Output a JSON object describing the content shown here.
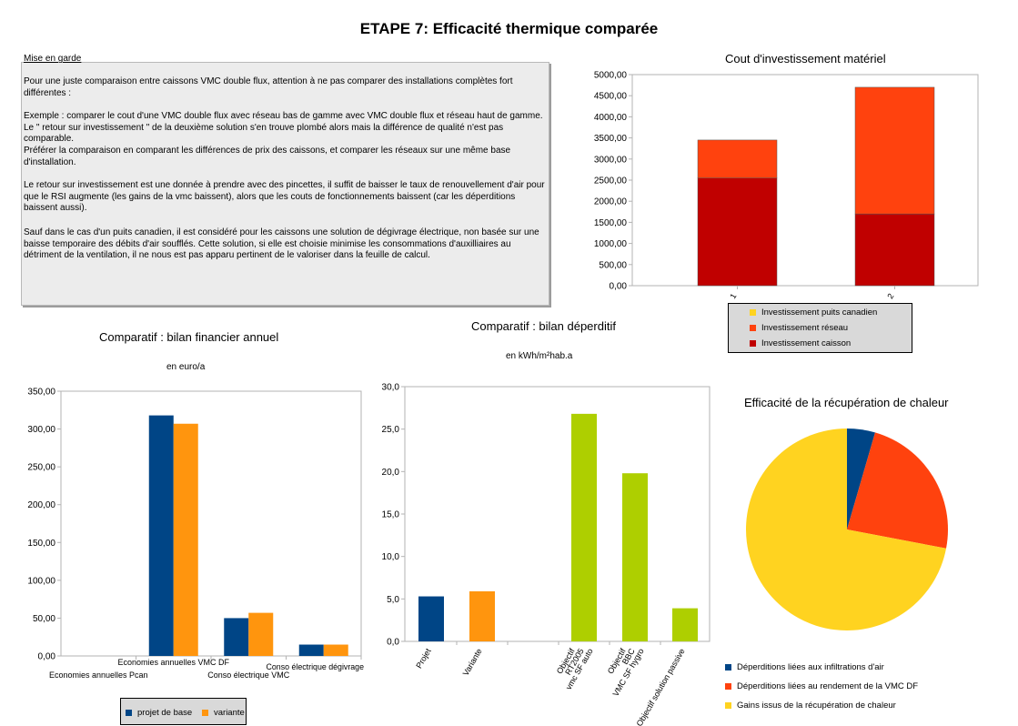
{
  "page": {
    "title": "ETAPE 7: Efficacité thermique comparée"
  },
  "warning": {
    "heading": "Mise en garde",
    "paragraphs": [
      "Pour une juste comparaison entre caissons VMC double flux, attention à ne pas comparer des installations complètes fort différentes :",
      "Exemple : comparer le cout d'une VMC double flux avec réseau bas de gamme avec VMC double flux et réseau haut de gamme. Le \" retour sur investissement \"  de la deuxième solution s'en trouve plombé alors  mais la différence de qualité n'est pas comparable.",
      "Préférer la comparaison en comparant les différences de prix des caissons, et comparer les réseaux sur une même base d'installation.",
      "Le retour sur investissement est une donnée à prendre avec des pincettes, il suffit de baisser le taux de renouvellement d'air pour que le RSI augmente (les gains de la vmc baissent), alors que les couts de fonctionnements baissent (car les déperditions baissent aussi).",
      "Sauf dans le cas d'un puits canadien, il est considéré pour les caissons une solution de dégivrage électrique, non basée sur une baisse temporaire des débits d'air soufflés. Cette solution, si elle est choisie minimise les consommations d'auxilliaires au détriment de la ventilation, il ne nous est pas apparu pertinent de le valoriser dans la feuille de calcul."
    ]
  },
  "chart_data": [
    {
      "id": "investissement",
      "type": "bar",
      "stacked": true,
      "title": "Cout d'investissement matériel",
      "categories": [
        "1",
        "2"
      ],
      "series": [
        {
          "name": "Investissement caisson",
          "color": "#c00000",
          "values": [
            2550,
            1700
          ]
        },
        {
          "name": "Investissement réseau",
          "color": "#ff420e",
          "values": [
            900,
            3000
          ]
        },
        {
          "name": "Investissement puits canadien",
          "color": "#ffd320",
          "values": [
            0,
            0
          ]
        }
      ],
      "ylim": [
        0,
        5000
      ],
      "yticks": [
        "0,00",
        "500,00",
        "1000,00",
        "1500,00",
        "2000,00",
        "2500,00",
        "3000,00",
        "3500,00",
        "4000,00",
        "4500,00",
        "5000,00"
      ],
      "grid": false,
      "legend_position": "bottom",
      "legend_order": [
        "Investissement puits canadien",
        "Investissement réseau",
        "Investissement caisson"
      ]
    },
    {
      "id": "financier",
      "type": "bar",
      "title": "Comparatif : bilan financier annuel",
      "subtitle": "en euro/a",
      "categories": [
        "Economies annuelles Pcan",
        "Economies annuelles VMC DF",
        "Conso électrique VMC",
        "Conso électrique dégivrage"
      ],
      "series": [
        {
          "name": "projet de base",
          "color": "#004586",
          "values": [
            0,
            318,
            50,
            15
          ]
        },
        {
          "name": "variante",
          "color": "#ff950e",
          "values": [
            0,
            307,
            57,
            15
          ]
        }
      ],
      "ylim": [
        0,
        350
      ],
      "yticks": [
        "0,00",
        "50,00",
        "100,00",
        "150,00",
        "200,00",
        "250,00",
        "300,00",
        "350,00"
      ],
      "grid": false,
      "legend_position": "bottom"
    },
    {
      "id": "deperditif",
      "type": "bar",
      "title": "Comparatif : bilan déperditif",
      "subtitle": "en kWh/m²hab.a",
      "categories": [
        "Projet",
        "Variante",
        "Objectif RT2005 vmc SF auto",
        "Objectif BBC VMC SF hygro",
        "Objectif solution passive"
      ],
      "category_label_lines": [
        [
          "Projet"
        ],
        [
          "Variante"
        ],
        [
          "Objectif",
          "RT2005",
          "vmc SF auto"
        ],
        [
          "Objectif",
          "BBC",
          "VMC SF hygro"
        ],
        [
          "Objectif solution passive"
        ]
      ],
      "values": [
        5.3,
        5.9,
        26.8,
        19.8,
        3.9
      ],
      "colors": [
        "#004586",
        "#ff950e",
        "#aecf00",
        "#aecf00",
        "#aecf00"
      ],
      "ylim": [
        0,
        30
      ],
      "yticks": [
        "0,0",
        "5,0",
        "10,0",
        "15,0",
        "20,0",
        "25,0",
        "30,0"
      ],
      "grid": false
    },
    {
      "id": "recuperation",
      "type": "pie",
      "title": "Efficacité de la récupération de chaleur",
      "slices": [
        {
          "label": "Déperditions liées aux infiltrations d'air",
          "value": 4.5,
          "color": "#004586"
        },
        {
          "label": "Déperditions liées au rendement de la VMC DF",
          "value": 23.5,
          "color": "#ff420e"
        },
        {
          "label": "Gains issus de la récupération de chaleur",
          "value": 72,
          "color": "#ffd320"
        }
      ],
      "legend_position": "bottom"
    }
  ]
}
